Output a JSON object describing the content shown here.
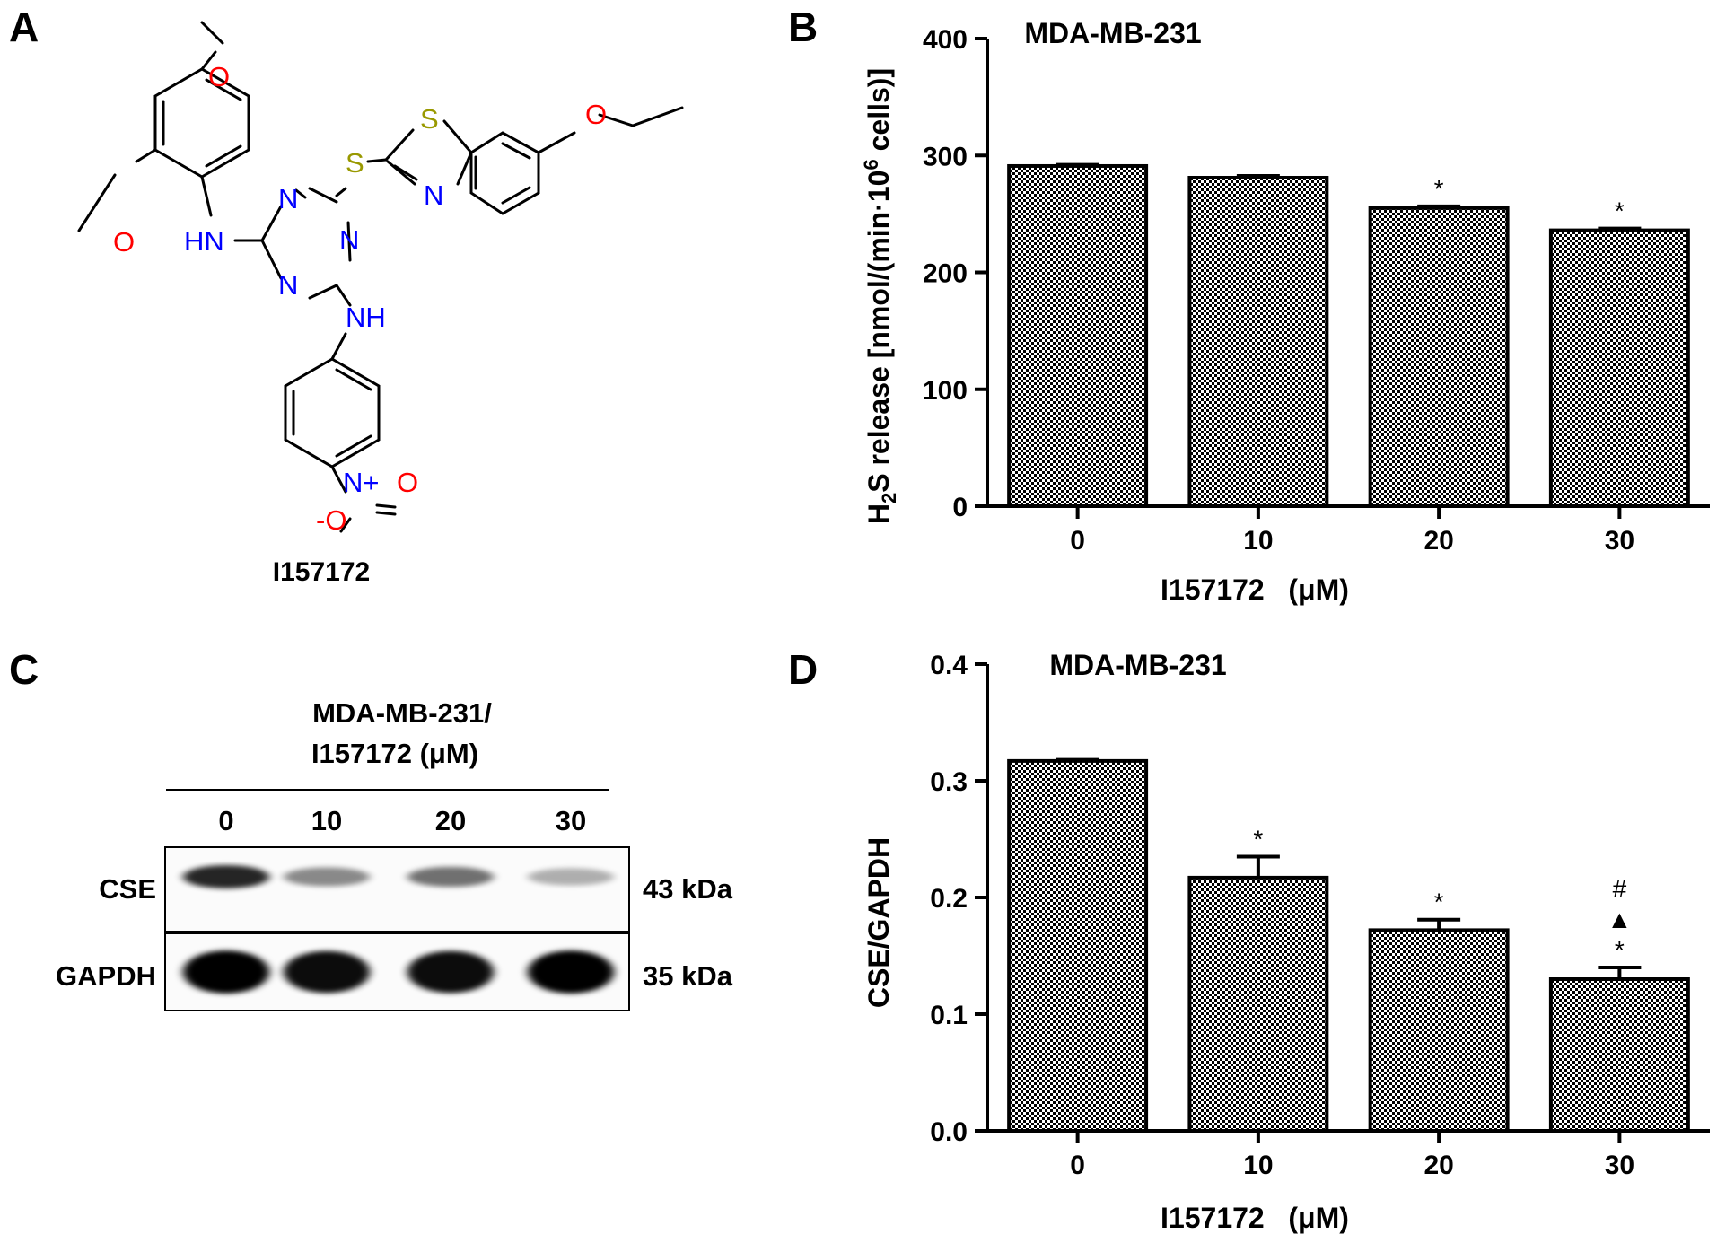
{
  "panels": {
    "a": "A",
    "b": "B",
    "c": "C",
    "d": "D"
  },
  "structure": {
    "compound_name": "I157172",
    "atoms": {
      "o_top": "O",
      "o_left": "O",
      "hn": "HN",
      "s_thio": "S",
      "s_ring": "S",
      "n_ring": "N",
      "o_ethoxy": "O",
      "n1": "N",
      "n2": "N",
      "n3": "N",
      "nh": "NH",
      "n_plus": "N+",
      "o_eq": "O",
      "o_minus": "-O"
    },
    "atom_colors": {
      "O": "#ff0000",
      "N": "#0000ff",
      "S": "#999900",
      "C": "#000000"
    }
  },
  "blot": {
    "header_line1": "MDA-MB-231/",
    "header_line2": "I157172 (μM)",
    "lanes": [
      "0",
      "10",
      "20",
      "30"
    ],
    "rows": [
      {
        "label": "CSE",
        "size": "43 kDa",
        "intensity": [
          0.85,
          0.45,
          0.55,
          0.3
        ]
      },
      {
        "label": "GAPDH",
        "size": "35 kDa",
        "intensity": [
          1.0,
          0.95,
          0.95,
          1.0
        ]
      }
    ]
  },
  "chart_data": [
    {
      "type": "bar",
      "panel": "B",
      "title": "MDA-MB-231",
      "categories": [
        "0",
        "10",
        "20",
        "30"
      ],
      "values": [
        291,
        281,
        255,
        236
      ],
      "errors": [
        1,
        1.5,
        1.5,
        1.5
      ],
      "significance": [
        "",
        "",
        "*",
        "*"
      ],
      "xlabel": "I157172   (μM)",
      "ylabel": "H2S release [nmol/(min·10⁶ cells)]",
      "ylim": [
        0,
        400
      ],
      "yticks": [
        "0",
        "100",
        "200",
        "300",
        "400"
      ]
    },
    {
      "type": "bar",
      "panel": "D",
      "title": "MDA-MB-231",
      "categories": [
        "0",
        "10",
        "20",
        "30"
      ],
      "values": [
        0.317,
        0.217,
        0.172,
        0.13
      ],
      "errors": [
        0.001,
        0.018,
        0.009,
        0.01
      ],
      "significance": [
        "",
        "*",
        "*",
        "#▲*"
      ],
      "xlabel": "I157172   (μM)",
      "ylabel": "CSE/GAPDH",
      "ylim": [
        0,
        0.4
      ],
      "yticks": [
        "0.0",
        "0.1",
        "0.2",
        "0.3",
        "0.4"
      ]
    }
  ]
}
